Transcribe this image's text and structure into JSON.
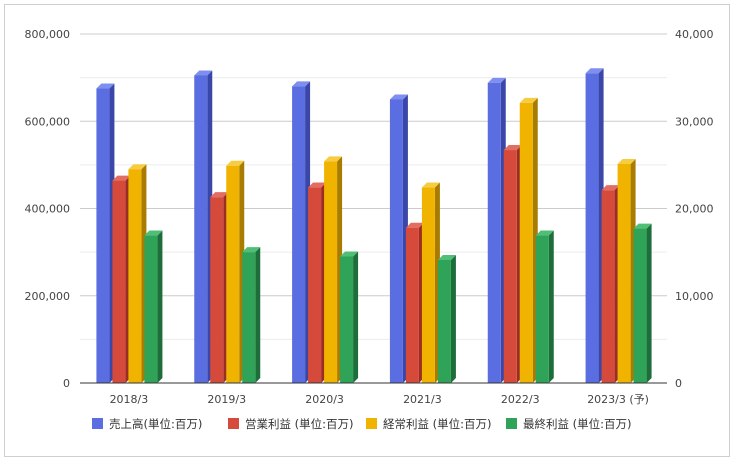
{
  "chart_data": {
    "type": "bar",
    "title": "",
    "xlabel": "",
    "ylabel": "",
    "categories": [
      "2018/3",
      "2019/3",
      "2020/3",
      "2021/3",
      "2022/3",
      "2023/3 (予)"
    ],
    "y_left": {
      "lim": [
        0,
        800000
      ],
      "ticks": [
        "0",
        "200,000",
        "400,000",
        "600,000",
        "800,000"
      ],
      "tick_values": [
        0,
        200000,
        400000,
        600000,
        800000
      ]
    },
    "y_right": {
      "lim": [
        0,
        40000
      ],
      "ticks": [
        "0",
        "10,000",
        "20,000",
        "30,000",
        "40,000"
      ],
      "tick_values": [
        0,
        10000,
        20000,
        30000,
        40000
      ]
    },
    "grid": true,
    "style": "3d-bars",
    "legend_position": "bottom",
    "series": [
      {
        "name": "売上高(単位:百万)",
        "axis": "left",
        "color": "#5b6ee1",
        "side_color": "#3a47a8",
        "top_color": "#7f8ff0",
        "values": [
          675000,
          705000,
          680000,
          650000,
          688000,
          710000
        ]
      },
      {
        "name": "営業利益 (単位:百万)",
        "axis": "right",
        "color": "#d64a3b",
        "side_color": "#9a2e24",
        "top_color": "#e36d60",
        "values": [
          23200,
          21300,
          22400,
          17800,
          26700,
          22100
        ]
      },
      {
        "name": "経常利益 (単位:百万)",
        "axis": "right",
        "color": "#f0b400",
        "side_color": "#a87c00",
        "top_color": "#f7cc40",
        "values": [
          24500,
          24900,
          25400,
          22400,
          32100,
          25100
        ]
      },
      {
        "name": "最終利益 (単位:百万)",
        "axis": "right",
        "color": "#2fa358",
        "side_color": "#1d6e3a",
        "top_color": "#4fbf75",
        "values": [
          16900,
          15000,
          14500,
          14100,
          16900,
          17700
        ]
      }
    ]
  }
}
